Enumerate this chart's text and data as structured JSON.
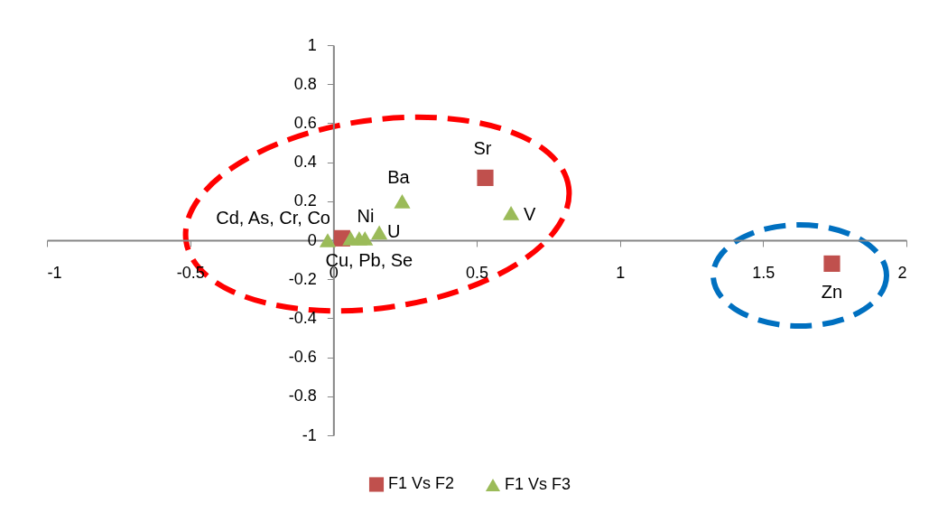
{
  "chart_data": {
    "type": "scatter",
    "series": [
      {
        "name": "F1 Vs F2",
        "color": "#c0504d",
        "marker": "square",
        "x": [
          0.03,
          0.53,
          1.74
        ],
        "values": [
          0.01,
          0.32,
          -0.12
        ]
      },
      {
        "name": "F1 Vs F3",
        "color": "#9bbb59",
        "marker": "triangle",
        "x": [
          -0.02,
          0.06,
          0.09,
          0.11,
          0.16,
          0.24,
          0.62
        ],
        "values": [
          0.0,
          0.01,
          0.01,
          0.01,
          0.04,
          0.2,
          0.14
        ]
      }
    ],
    "annotations": [
      {
        "text": "Cd, As, Cr, Co",
        "x": -0.02,
        "y": 0.0
      },
      {
        "text": "Ni",
        "x": 0.09,
        "y": 0.01
      },
      {
        "text": "U",
        "x": 0.16,
        "y": 0.04
      },
      {
        "text": "Cu, Pb, Se",
        "x": 0.03,
        "y": 0.01
      },
      {
        "text": "Ba",
        "x": 0.24,
        "y": 0.2
      },
      {
        "text": "V",
        "x": 0.62,
        "y": 0.14
      },
      {
        "text": "Sr",
        "x": 0.53,
        "y": 0.32
      },
      {
        "text": "Zn",
        "x": 1.74,
        "y": -0.12
      }
    ],
    "xlim": [
      -1,
      2
    ],
    "xticks": [
      -1,
      -0.5,
      0,
      0.5,
      1,
      1.5,
      2
    ],
    "ylim": [
      -1,
      1
    ],
    "yticks": [
      -1,
      -0.8,
      -0.6,
      -0.4,
      -0.2,
      0,
      0.2,
      0.4,
      0.6,
      0.8,
      1
    ],
    "grid": false,
    "legend": "bottom"
  }
}
